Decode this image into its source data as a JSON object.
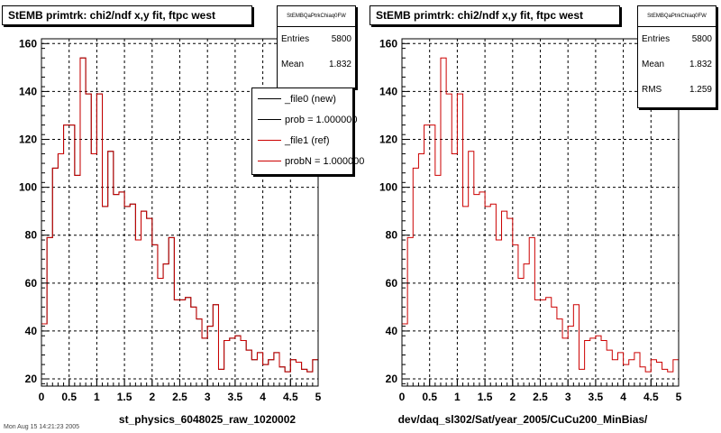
{
  "colors": {
    "new": "#000000",
    "ref": "#cc0000",
    "grid": "#000000",
    "frame": "#000000"
  },
  "footer": "Mon Aug 15 14:21:23 2005",
  "legend": {
    "items": [
      {
        "label": "_file0 (new)",
        "color": "#000000"
      },
      {
        "label": "prob = 1.000000",
        "color": "#000000"
      },
      {
        "label": "_file1 (ref)",
        "color": "#cc0000"
      },
      {
        "label": "probN = 1.000000",
        "color": "#cc0000"
      }
    ]
  },
  "panels": [
    {
      "title": "StEMB primtrk: chi2/ndf x,y fit, ftpc west",
      "stats": {
        "name": "StEMBQaPtrkChiaq0FW",
        "rows": [
          {
            "label": "Entries",
            "value": "5800"
          },
          {
            "label": "Mean",
            "value": "1.832"
          }
        ]
      },
      "xlabel": "st_physics_6048025_raw_1020002"
    },
    {
      "title": "StEMB primtrk: chi2/ndf x,y fit, ftpc west",
      "stats": {
        "name": "StEMBQaPtrkChiaq0FW",
        "rows": [
          {
            "label": "Entries",
            "value": "5800"
          },
          {
            "label": "Mean",
            "value": "1.832"
          },
          {
            "label": "RMS",
            "value": "1.259"
          }
        ]
      },
      "xlabel": "dev/daq_sl302/Sat/year_2005/CuCu200_MinBias/"
    }
  ],
  "chart_data": [
    {
      "type": "histogram",
      "title": "StEMB primtrk: chi2/ndf x,y fit, ftpc west",
      "xlabel": "st_physics_6048025_raw_1020002",
      "ylabel": "",
      "xlim": [
        0,
        5
      ],
      "ylim": [
        17,
        162
      ],
      "grid": true,
      "x_ticks": [
        "0",
        "0.5",
        "1",
        "1.5",
        "2",
        "2.5",
        "3",
        "3.5",
        "4",
        "4.5",
        "5"
      ],
      "y_ticks": [
        "20",
        "40",
        "60",
        "80",
        "100",
        "120",
        "140",
        "160"
      ],
      "bin_width": 0.1,
      "bin_edges_start": 0,
      "series": [
        {
          "name": "_file0 (new)",
          "color": "#000000",
          "values": [
            43,
            79,
            108,
            114,
            126,
            126,
            105,
            154,
            139,
            114,
            139,
            92,
            115,
            97,
            98,
            92,
            93,
            78,
            90,
            87,
            76,
            62,
            68,
            79,
            53,
            53,
            54,
            50,
            45,
            37,
            42,
            51,
            24,
            36,
            37,
            38,
            36,
            32,
            28,
            31,
            26,
            28,
            31,
            25,
            23,
            28,
            27,
            24,
            23,
            28
          ]
        },
        {
          "name": "_file1 (ref)",
          "color": "#cc0000",
          "values": [
            43,
            79,
            108,
            114,
            126,
            126,
            105,
            154,
            139,
            114,
            139,
            92,
            115,
            97,
            98,
            92,
            93,
            78,
            90,
            87,
            76,
            62,
            68,
            79,
            53,
            53,
            54,
            50,
            45,
            37,
            42,
            51,
            24,
            36,
            37,
            38,
            36,
            32,
            28,
            31,
            26,
            28,
            31,
            25,
            23,
            28,
            27,
            24,
            23,
            28
          ]
        }
      ]
    },
    {
      "type": "histogram",
      "title": "StEMB primtrk: chi2/ndf x,y fit, ftpc west",
      "xlabel": "dev/daq_sl302/Sat/year_2005/CuCu200_MinBias/",
      "ylabel": "",
      "xlim": [
        0,
        5
      ],
      "ylim": [
        17,
        162
      ],
      "grid": true,
      "x_ticks": [
        "0",
        "0.5",
        "1",
        "1.5",
        "2",
        "2.5",
        "3",
        "3.5",
        "4",
        "4.5",
        "5"
      ],
      "y_ticks": [
        "20",
        "40",
        "60",
        "80",
        "100",
        "120",
        "140",
        "160"
      ],
      "bin_width": 0.1,
      "bin_edges_start": 0,
      "series": [
        {
          "name": "",
          "color": "#cc0000",
          "values": [
            43,
            79,
            108,
            114,
            126,
            126,
            105,
            154,
            139,
            114,
            139,
            92,
            115,
            97,
            98,
            92,
            93,
            78,
            90,
            87,
            76,
            62,
            68,
            79,
            53,
            53,
            54,
            50,
            45,
            37,
            42,
            51,
            24,
            36,
            37,
            38,
            36,
            32,
            28,
            31,
            26,
            28,
            31,
            25,
            23,
            28,
            27,
            24,
            23,
            28
          ]
        }
      ]
    }
  ]
}
